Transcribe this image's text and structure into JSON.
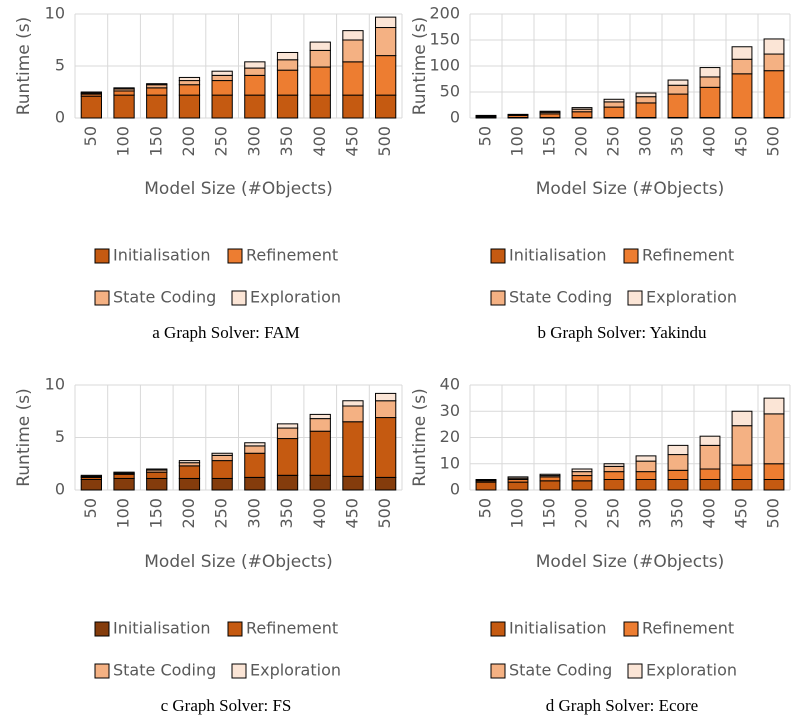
{
  "chart_data": [
    {
      "type": "bar",
      "stacked": true,
      "caption": "a Graph Solver: FAM",
      "x_label": "Model Size (#Objects)",
      "y_label": "Runtime (s)",
      "categories": [
        "50",
        "100",
        "150",
        "200",
        "250",
        "300",
        "350",
        "400",
        "450",
        "500"
      ],
      "ylim": [
        0,
        10
      ],
      "yticks": [
        0,
        5,
        10
      ],
      "grid": true,
      "series": [
        {
          "name": "Initialisation",
          "color": "#c55a11",
          "values": [
            2.1,
            2.2,
            2.2,
            2.2,
            2.2,
            2.2,
            2.2,
            2.2,
            2.2,
            2.2
          ]
        },
        {
          "name": "Refinement",
          "color": "#ed7d31",
          "values": [
            0.2,
            0.4,
            0.7,
            1.0,
            1.4,
            1.9,
            2.4,
            2.7,
            3.2,
            3.8
          ]
        },
        {
          "name": "State Coding",
          "color": "#f4b183",
          "values": [
            0.1,
            0.2,
            0.3,
            0.4,
            0.5,
            0.7,
            1.0,
            1.6,
            2.1,
            2.7
          ]
        },
        {
          "name": "Exploration",
          "color": "#fbe5d6",
          "values": [
            0.1,
            0.1,
            0.1,
            0.3,
            0.4,
            0.6,
            0.7,
            0.8,
            0.9,
            1.0
          ]
        }
      ]
    },
    {
      "type": "bar",
      "stacked": true,
      "caption": "b Graph Solver: Yakindu",
      "x_label": "Model Size (#Objects)",
      "y_label": "Runtime (s)",
      "categories": [
        "50",
        "100",
        "150",
        "200",
        "250",
        "300",
        "350",
        "400",
        "450",
        "500"
      ],
      "ylim": [
        0,
        200
      ],
      "yticks": [
        0,
        50,
        100,
        150,
        200
      ],
      "grid": true,
      "series": [
        {
          "name": "Initialisation",
          "color": "#c55a11",
          "values": [
            1,
            1,
            1,
            1,
            1,
            1,
            1,
            1,
            1,
            1
          ]
        },
        {
          "name": "Refinement",
          "color": "#ed7d31",
          "values": [
            2,
            4,
            7,
            11,
            20,
            28,
            45,
            58,
            84,
            90
          ]
        },
        {
          "name": "State Coding",
          "color": "#f4b183",
          "values": [
            1,
            1,
            3,
            5,
            10,
            12,
            17,
            20,
            28,
            32
          ]
        },
        {
          "name": "Exploration",
          "color": "#fbe5d6",
          "values": [
            1,
            1,
            2,
            3,
            5,
            7,
            10,
            18,
            24,
            29
          ]
        }
      ]
    },
    {
      "type": "bar",
      "stacked": true,
      "caption": "c Graph Solver: FS",
      "x_label": "Model Size (#Objects)",
      "y_label": "Runtime (s)",
      "categories": [
        "50",
        "100",
        "150",
        "200",
        "250",
        "300",
        "350",
        "400",
        "450",
        "500"
      ],
      "ylim": [
        0,
        10
      ],
      "yticks": [
        0,
        5,
        10
      ],
      "grid": true,
      "series": [
        {
          "name": "Initialisation",
          "color": "#843c0c",
          "values": [
            1.0,
            1.1,
            1.1,
            1.1,
            1.1,
            1.2,
            1.4,
            1.4,
            1.3,
            1.2
          ]
        },
        {
          "name": "Refinement",
          "color": "#c55a11",
          "values": [
            0.2,
            0.4,
            0.6,
            1.2,
            1.7,
            2.3,
            3.5,
            4.2,
            5.2,
            5.7
          ]
        },
        {
          "name": "State Coding",
          "color": "#f4b183",
          "values": [
            0.1,
            0.1,
            0.2,
            0.3,
            0.5,
            0.7,
            1.0,
            1.2,
            1.5,
            1.6
          ]
        },
        {
          "name": "Exploration",
          "color": "#fbe5d6",
          "values": [
            0.1,
            0.1,
            0.1,
            0.2,
            0.2,
            0.3,
            0.4,
            0.4,
            0.5,
            0.7
          ]
        }
      ]
    },
    {
      "type": "bar",
      "stacked": true,
      "caption": "d Graph Solver: Ecore",
      "x_label": "Model Size (#Objects)",
      "y_label": "Runtime (s)",
      "categories": [
        "50",
        "100",
        "150",
        "200",
        "250",
        "300",
        "350",
        "400",
        "450",
        "500"
      ],
      "ylim": [
        0,
        40
      ],
      "yticks": [
        0,
        10,
        20,
        30,
        40
      ],
      "grid": true,
      "series": [
        {
          "name": "Initialisation",
          "color": "#c55a11",
          "values": [
            3,
            3,
            3.5,
            3.5,
            4,
            4,
            4,
            4,
            4,
            4
          ]
        },
        {
          "name": "Refinement",
          "color": "#ed7d31",
          "values": [
            0.5,
            1,
            1.5,
            2,
            3,
            3,
            3.5,
            4,
            5.5,
            6
          ]
        },
        {
          "name": "State Coding",
          "color": "#f4b183",
          "values": [
            0.3,
            0.5,
            0.5,
            1.5,
            2,
            4,
            6,
            9,
            15,
            19
          ]
        },
        {
          "name": "Exploration",
          "color": "#fbe5d6",
          "values": [
            0.2,
            0.5,
            0.5,
            1,
            1,
            2,
            3.5,
            3.5,
            5.5,
            6
          ]
        }
      ]
    }
  ]
}
